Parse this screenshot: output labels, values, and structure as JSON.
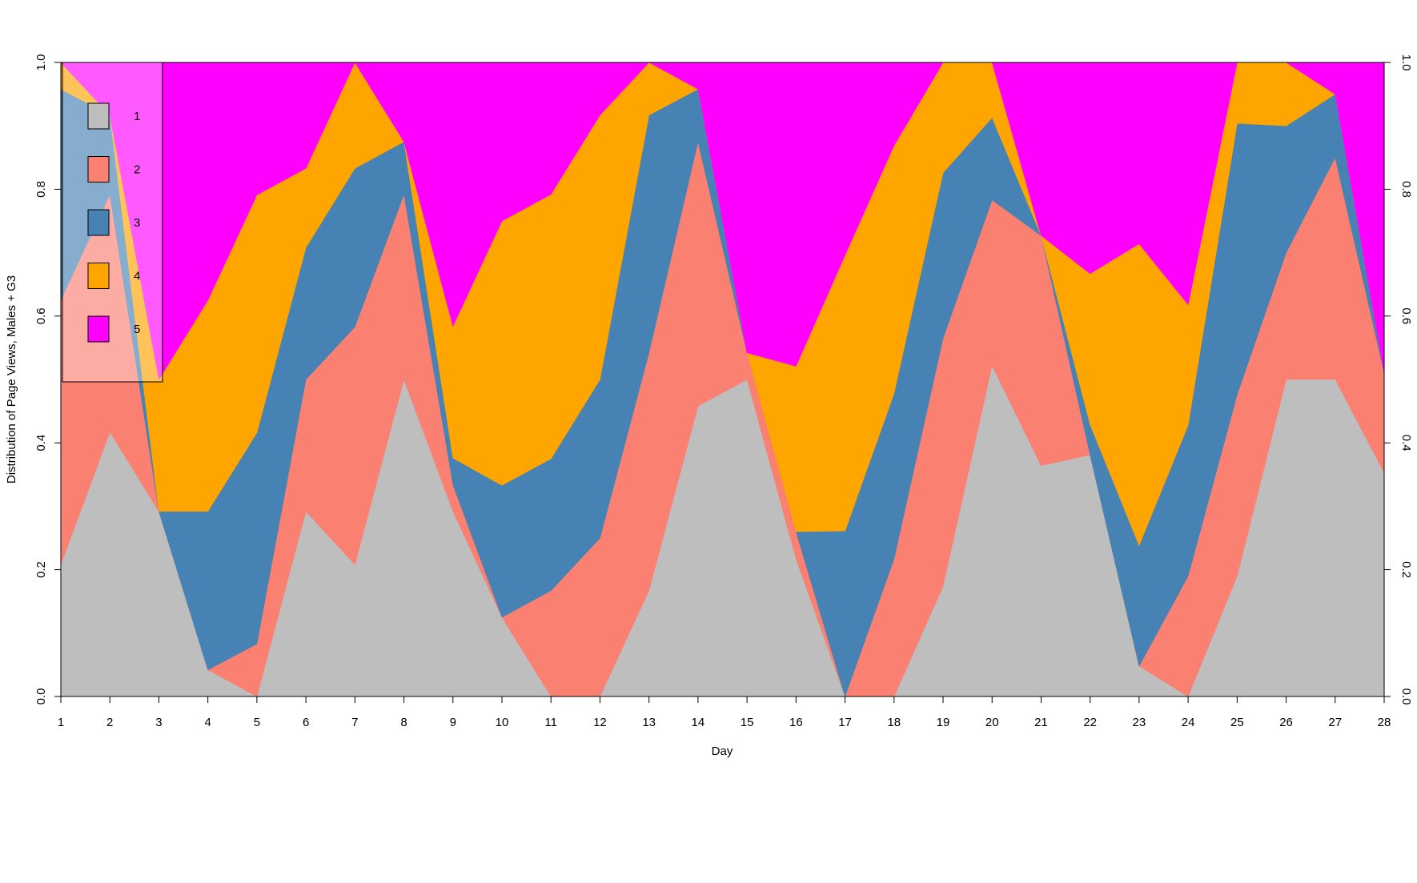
{
  "chart_data": {
    "type": "area",
    "stacked": true,
    "normalized": true,
    "xlabel": "Day",
    "ylabel": "Distribution of Page Views, Males + G3",
    "ylim": [
      0,
      1
    ],
    "xlim": [
      1,
      28
    ],
    "yticks": [
      "0.0",
      "0.2",
      "0.4",
      "0.6",
      "0.8",
      "1.0"
    ],
    "x": [
      1,
      2,
      3,
      4,
      5,
      6,
      7,
      8,
      9,
      10,
      11,
      12,
      13,
      14,
      15,
      16,
      17,
      18,
      19,
      20,
      21,
      22,
      23,
      24,
      25,
      26,
      27,
      28
    ],
    "legend_position": "top-left",
    "legend_semi_transparent": true,
    "grid": false,
    "series": [
      {
        "name": "1",
        "color": "#BEBEBE",
        "values": [
          0.208,
          0.417,
          0.292,
          0.042,
          0.0,
          0.292,
          0.208,
          0.5,
          0.292,
          0.125,
          0.0,
          0.0,
          0.167,
          0.458,
          0.5,
          0.217,
          0.0,
          0.0,
          0.174,
          0.522,
          0.364,
          0.381,
          0.048,
          0.0,
          0.19,
          0.5,
          0.5,
          0.353
        ]
      },
      {
        "name": "2",
        "color": "#FA8072",
        "values": [
          0.417,
          0.375,
          0.0,
          0.0,
          0.083,
          0.208,
          0.375,
          0.292,
          0.042,
          0.0,
          0.167,
          0.25,
          0.375,
          0.417,
          0.042,
          0.043,
          0.0,
          0.217,
          0.391,
          0.261,
          0.363,
          0.0,
          0.0,
          0.19,
          0.286,
          0.2,
          0.35,
          0.157
        ]
      },
      {
        "name": "3",
        "color": "#4682B4",
        "values": [
          0.333,
          0.125,
          0.0,
          0.25,
          0.333,
          0.208,
          0.25,
          0.083,
          0.042,
          0.208,
          0.208,
          0.25,
          0.375,
          0.083,
          0.0,
          0.0,
          0.261,
          0.261,
          0.261,
          0.13,
          0.0,
          0.048,
          0.19,
          0.238,
          0.428,
          0.2,
          0.1,
          0.0
        ]
      },
      {
        "name": "4",
        "color": "#FFA500",
        "values": [
          0.042,
          0.0,
          0.208,
          0.333,
          0.375,
          0.125,
          0.167,
          0.0,
          0.208,
          0.417,
          0.417,
          0.417,
          0.083,
          0.0,
          0.0,
          0.261,
          0.435,
          0.391,
          0.174,
          0.087,
          0.0,
          0.238,
          0.476,
          0.19,
          0.096,
          0.1,
          0.0,
          0.0
        ]
      },
      {
        "name": "5",
        "color": "#FF00FF",
        "values": [
          0.0,
          0.083,
          0.5,
          0.375,
          0.209,
          0.167,
          0.0,
          0.125,
          0.416,
          0.25,
          0.208,
          0.083,
          0.0,
          0.042,
          0.458,
          0.479,
          0.304,
          0.131,
          0.0,
          0.0,
          0.273,
          0.333,
          0.286,
          0.382,
          0.0,
          0.0,
          0.05,
          0.49
        ]
      }
    ]
  }
}
